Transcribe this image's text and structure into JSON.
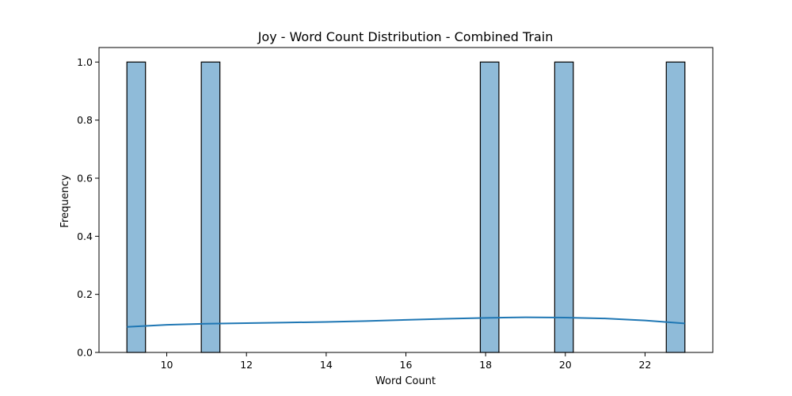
{
  "chart_data": {
    "type": "bar",
    "title": "Joy - Word Count Distribution - Combined Train",
    "xlabel": "Word Count",
    "ylabel": "Frequency",
    "xlim": [
      8.3,
      23.7
    ],
    "ylim": [
      0,
      1.05
    ],
    "x_ticks": [
      10,
      12,
      14,
      16,
      18,
      20,
      22
    ],
    "y_ticks": [
      0.0,
      0.2,
      0.4,
      0.6,
      0.8,
      1.0
    ],
    "bin_width": 0.4667,
    "bars": [
      {
        "x_start": 9.0,
        "x_end": 9.4667,
        "value": 1
      },
      {
        "x_start": 10.8667,
        "x_end": 11.3333,
        "value": 1
      },
      {
        "x_start": 17.8667,
        "x_end": 18.3333,
        "value": 1
      },
      {
        "x_start": 19.7333,
        "x_end": 20.2,
        "value": 1
      },
      {
        "x_start": 22.5333,
        "x_end": 23.0,
        "value": 1
      }
    ],
    "kde_curve": {
      "x": [
        9,
        10,
        11,
        12,
        13,
        14,
        15,
        16,
        17,
        18,
        19,
        20,
        21,
        22,
        23
      ],
      "y": [
        0.088,
        0.095,
        0.099,
        0.101,
        0.103,
        0.105,
        0.108,
        0.112,
        0.116,
        0.119,
        0.121,
        0.12,
        0.117,
        0.11,
        0.1
      ]
    },
    "colors": {
      "bar_fill": "#8fbbd9",
      "bar_edge": "#000000",
      "kde_line": "#1f77b4"
    },
    "grid": false
  }
}
